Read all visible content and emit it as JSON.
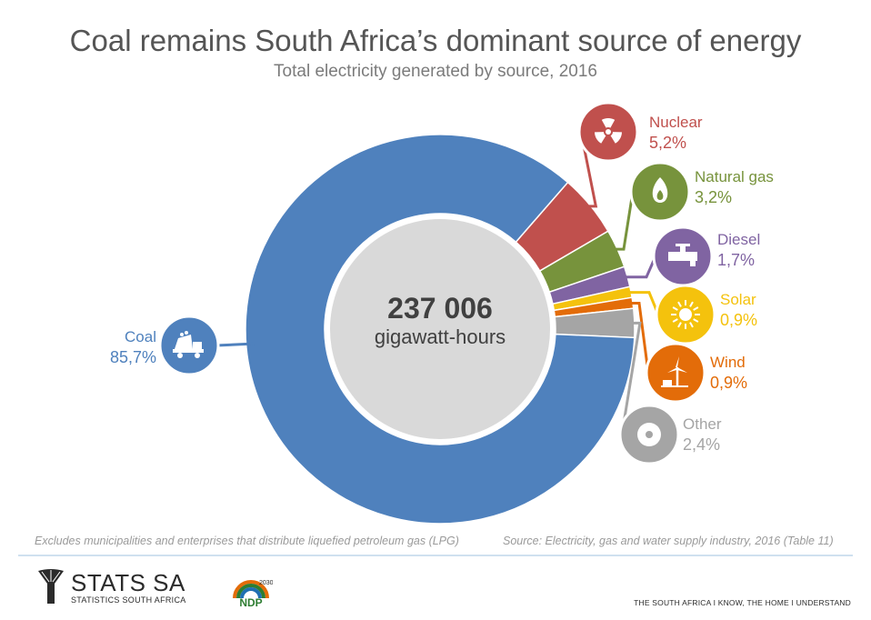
{
  "header": {
    "title": "Coal remains South Africa’s dominant source of energy",
    "subtitle": "Total electricity generated by source, 2016"
  },
  "chart_data": {
    "type": "pie",
    "title": "Coal remains South Africa’s dominant source of energy",
    "subtitle": "Total electricity generated by source, 2016",
    "center_value": "237 006",
    "center_unit": "gigawatt-hours",
    "slices": [
      {
        "name": "Coal",
        "value": 85.7,
        "label": "85,7%",
        "color": "#4f81bd",
        "icon": "coal-truck-icon"
      },
      {
        "name": "Nuclear",
        "value": 5.2,
        "label": "5,2%",
        "color": "#c0504d",
        "icon": "radiation-icon"
      },
      {
        "name": "Natural gas",
        "value": 3.2,
        "label": "3,2%",
        "color": "#77933c",
        "icon": "flame-icon"
      },
      {
        "name": "Diesel",
        "value": 1.7,
        "label": "1,7%",
        "color": "#8064a2",
        "icon": "fuel-tap-icon"
      },
      {
        "name": "Solar",
        "value": 0.9,
        "label": "0,9%",
        "color": "#f4c20d",
        "icon": "sun-icon"
      },
      {
        "name": "Wind",
        "value": 0.9,
        "label": "0,9%",
        "color": "#e36c09",
        "icon": "wind-turbine-icon"
      },
      {
        "name": "Other",
        "value": 2.4,
        "label": "2,4%",
        "color": "#a5a5a5",
        "icon": "disc-icon"
      }
    ]
  },
  "footnotes": {
    "left": "Excludes municipalities and enterprises that distribute liquefied petroleum gas (LPG)",
    "right": "Source: Electricity, gas and water supply industry, 2016 (Table 11)"
  },
  "footer": {
    "logo_text": "STATS SA",
    "logo_sub": "STATISTICS SOUTH AFRICA",
    "ndp_text": "NDP",
    "ndp_year": "2030",
    "tagline": "THE SOUTH AFRICA I KNOW, THE HOME I UNDERSTAND"
  }
}
